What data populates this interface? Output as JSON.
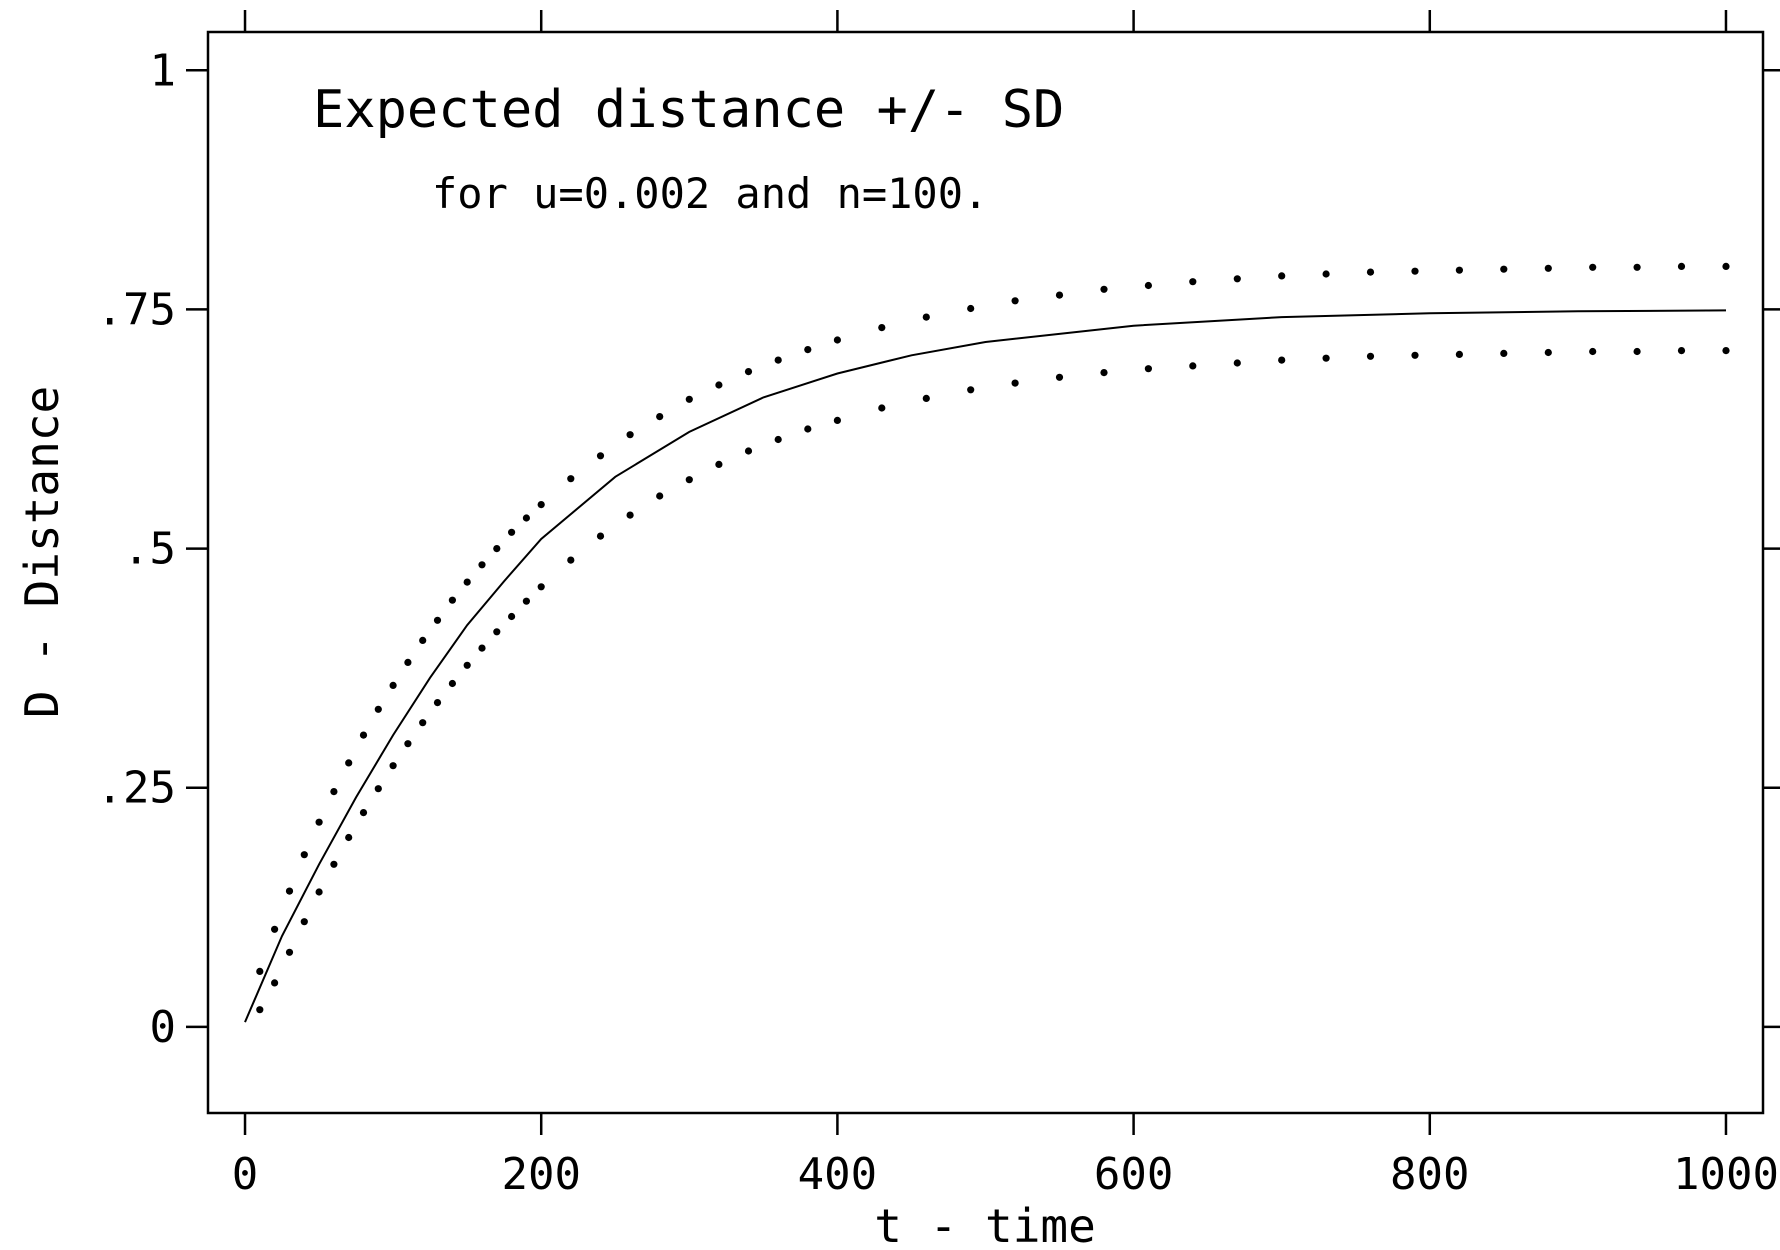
{
  "chart_data": {
    "type": "line",
    "title": "Expected distance +/- SD",
    "subtitle": "for u=0.002 and n=100.",
    "xlabel": "t - time",
    "ylabel": "D - Distance",
    "xlim": [
      -25,
      1025
    ],
    "ylim": [
      -0.09,
      1.04
    ],
    "x_ticks": [
      {
        "value": 0,
        "label": "0"
      },
      {
        "value": 200,
        "label": "200"
      },
      {
        "value": 400,
        "label": "400"
      },
      {
        "value": 600,
        "label": "600"
      },
      {
        "value": 800,
        "label": "800"
      },
      {
        "value": 1000,
        "label": "1000"
      }
    ],
    "y_ticks": [
      {
        "value": 0,
        "label": "0"
      },
      {
        "value": 0.25,
        "label": ".25"
      },
      {
        "value": 0.5,
        "label": ".5"
      },
      {
        "value": 0.75,
        "label": ".75"
      },
      {
        "value": 1,
        "label": "1"
      }
    ],
    "grid": false,
    "legend": "none",
    "series": [
      {
        "style": "solid",
        "x": [
          0,
          25,
          50,
          75,
          100,
          125,
          150,
          175,
          200,
          250,
          300,
          350,
          400,
          450,
          500,
          600,
          700,
          800,
          900,
          1000
        ],
        "y": [
          0.005,
          0.095,
          0.17,
          0.24,
          0.305,
          0.365,
          0.42,
          0.466,
          0.51,
          0.575,
          0.622,
          0.658,
          0.683,
          0.702,
          0.716,
          0.733,
          0.742,
          0.746,
          0.748,
          0.749
        ]
      },
      {
        "style": "dotted",
        "x": [
          10,
          20,
          30,
          40,
          50,
          60,
          70,
          80,
          90,
          100,
          110,
          120,
          130,
          140,
          150,
          160,
          170,
          180,
          190,
          200,
          220,
          240,
          260,
          280,
          300,
          320,
          340,
          360,
          380,
          400,
          430,
          460,
          490,
          520,
          550,
          580,
          610,
          640,
          670,
          700,
          730,
          760,
          790,
          820,
          850,
          880,
          910,
          940,
          970,
          1000
        ],
        "y": [
          0.058,
          0.102,
          0.142,
          0.18,
          0.214,
          0.246,
          0.276,
          0.305,
          0.332,
          0.357,
          0.381,
          0.404,
          0.425,
          0.446,
          0.465,
          0.483,
          0.5,
          0.517,
          0.532,
          0.546,
          0.573,
          0.597,
          0.619,
          0.638,
          0.656,
          0.671,
          0.685,
          0.697,
          0.708,
          0.718,
          0.731,
          0.742,
          0.751,
          0.759,
          0.765,
          0.771,
          0.775,
          0.779,
          0.782,
          0.785,
          0.787,
          0.789,
          0.79,
          0.791,
          0.792,
          0.793,
          0.794,
          0.794,
          0.795,
          0.795
        ]
      },
      {
        "style": "dotted",
        "x": [
          10,
          20,
          30,
          40,
          50,
          60,
          70,
          80,
          90,
          100,
          110,
          120,
          130,
          140,
          150,
          160,
          170,
          180,
          190,
          200,
          220,
          240,
          260,
          280,
          300,
          320,
          340,
          360,
          380,
          400,
          430,
          460,
          490,
          520,
          550,
          580,
          610,
          640,
          670,
          700,
          730,
          760,
          790,
          820,
          850,
          880,
          910,
          940,
          970,
          1000
        ],
        "y": [
          0.018,
          0.046,
          0.078,
          0.11,
          0.141,
          0.17,
          0.198,
          0.224,
          0.249,
          0.273,
          0.296,
          0.318,
          0.339,
          0.359,
          0.378,
          0.396,
          0.413,
          0.429,
          0.445,
          0.46,
          0.488,
          0.513,
          0.535,
          0.555,
          0.572,
          0.588,
          0.602,
          0.614,
          0.625,
          0.634,
          0.647,
          0.657,
          0.666,
          0.673,
          0.679,
          0.684,
          0.688,
          0.691,
          0.694,
          0.697,
          0.699,
          0.701,
          0.702,
          0.703,
          0.704,
          0.705,
          0.706,
          0.706,
          0.707,
          0.707
        ]
      }
    ]
  }
}
